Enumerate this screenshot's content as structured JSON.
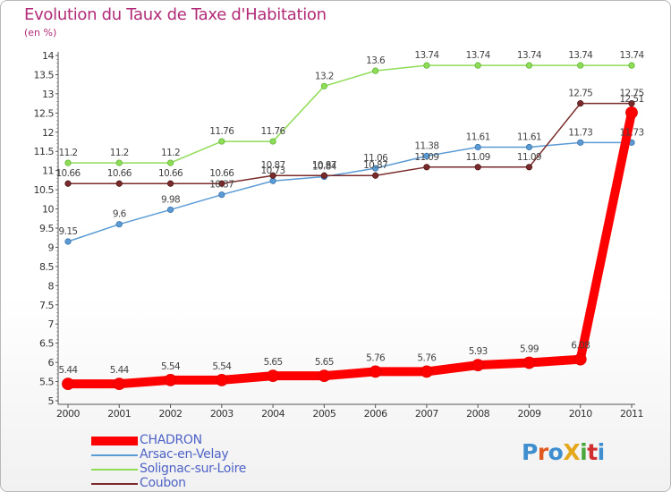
{
  "header": {
    "title": "Evolution du Taux de Taxe d'Habitation",
    "subtitle": "(en %)"
  },
  "logo": {
    "text": "ProXiti",
    "colors": [
      "#3f8fd0",
      "#e05a1f",
      "#3f8fd0",
      "#e6a81b",
      "#48a83c",
      "#d12f2f",
      "#3f8fd0"
    ]
  },
  "chart_data": {
    "type": "line",
    "title": "Evolution du Taux de Taxe d'Habitation",
    "ylabel": "(en %)",
    "x": [
      "2000",
      "2001",
      "2002",
      "2003",
      "2004",
      "2005",
      "2006",
      "2007",
      "2008",
      "2009",
      "2010",
      "2011"
    ],
    "ylim": [
      5,
      14
    ],
    "yticks": [
      "5",
      "5.5",
      "6",
      "6.5",
      "7",
      "7.5",
      "8",
      "8.5",
      "9",
      "9.5",
      "10",
      "10.5",
      "11",
      "11.5",
      "12",
      "12.5",
      "13",
      "13.5",
      "14"
    ],
    "grid": false,
    "legend_position": "bottom-left",
    "series": [
      {
        "name": "CHADRON",
        "color": "#ff0000",
        "values": [
          5.44,
          5.44,
          5.54,
          5.54,
          5.65,
          5.65,
          5.76,
          5.76,
          5.93,
          5.99,
          6.08,
          12.51
        ],
        "labels": [
          "5.44",
          "5.44",
          "5.54",
          "5.54",
          "5.65",
          "5.65",
          "5.76",
          "5.76",
          "5.93",
          "5.99",
          "6.08",
          "12.51"
        ]
      },
      {
        "name": "Arsac-en-Velay",
        "color": "#5b9bd5",
        "values": [
          9.15,
          9.6,
          9.98,
          10.37,
          10.73,
          10.84,
          11.06,
          11.38,
          11.61,
          11.61,
          11.73,
          11.73
        ],
        "labels": [
          "9.15",
          "9.6",
          "9.98",
          "10.37",
          "10.73",
          "10.84",
          "11.06",
          "11.38",
          "11.61",
          "11.61",
          "11.73",
          "11.73"
        ]
      },
      {
        "name": "Solignac-sur-Loire",
        "color": "#8fdc57",
        "values": [
          11.2,
          11.2,
          11.2,
          11.76,
          11.76,
          13.2,
          13.6,
          13.74,
          13.74,
          13.74,
          13.74,
          13.74
        ],
        "labels": [
          "11.2",
          "11.2",
          "11.2",
          "11.76",
          "11.76",
          "13.2",
          "13.6",
          "13.74",
          "13.74",
          "13.74",
          "13.74",
          "13.74"
        ]
      },
      {
        "name": "Coubon",
        "color": "#7a2a2a",
        "values": [
          10.66,
          10.66,
          10.66,
          10.66,
          10.87,
          10.87,
          10.87,
          11.09,
          11.09,
          11.09,
          12.75,
          12.75
        ],
        "labels": [
          "10.66",
          "10.66",
          "10.66",
          "10.66",
          "10.87",
          "10.87",
          "10.87",
          "11.09",
          "11.09",
          "11.09",
          "12.75",
          "12.75"
        ]
      }
    ]
  }
}
